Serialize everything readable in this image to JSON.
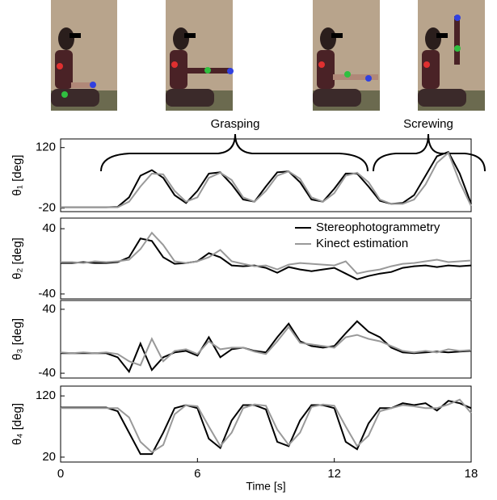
{
  "annotations": [
    "Grasping",
    "Screwing"
  ],
  "chart_data": [
    {
      "type": "line",
      "ylabel": "θ₁ [deg]",
      "xlim": [
        0,
        18
      ],
      "ylim": [
        -28,
        140
      ],
      "yticks": [
        -20,
        120
      ],
      "x": [
        0,
        0.5,
        1,
        1.5,
        2,
        2.5,
        3,
        3.5,
        4,
        4.5,
        5,
        5.5,
        6,
        6.5,
        7,
        7.5,
        8,
        8.5,
        9,
        9.5,
        10,
        10.5,
        11,
        11.5,
        12,
        12.5,
        13,
        13.5,
        14,
        14.5,
        15,
        15.5,
        16,
        16.5,
        17,
        17.5,
        18
      ],
      "series": [
        {
          "color": "#000000",
          "values": [
            -18,
            -18,
            -18,
            -18,
            -18,
            -17,
            5,
            55,
            68,
            50,
            10,
            -8,
            20,
            60,
            63,
            35,
            0,
            -5,
            30,
            63,
            65,
            40,
            0,
            -5,
            25,
            60,
            60,
            30,
            -3,
            -10,
            -8,
            10,
            55,
            100,
            110,
            60,
            -10
          ]
        },
        {
          "color": "#999999",
          "values": [
            -18,
            -18,
            -18,
            -18,
            -18,
            -18,
            -5,
            30,
            60,
            58,
            20,
            -5,
            5,
            50,
            62,
            45,
            5,
            -5,
            20,
            55,
            65,
            48,
            5,
            -5,
            15,
            55,
            62,
            40,
            0,
            -10,
            -10,
            0,
            35,
            85,
            108,
            40,
            -15
          ]
        }
      ]
    },
    {
      "type": "line",
      "ylabel": "θ₂ [deg]",
      "xlim": [
        0,
        18
      ],
      "ylim": [
        -46,
        53
      ],
      "yticks": [
        -40,
        40
      ],
      "legend": "upper right",
      "x": [
        0,
        0.5,
        1,
        1.5,
        2,
        2.5,
        3,
        3.5,
        4,
        4.5,
        5,
        5.5,
        6,
        6.5,
        7,
        7.5,
        8,
        8.5,
        9,
        9.5,
        10,
        10.5,
        11,
        11.5,
        12,
        12.5,
        13,
        13.5,
        14,
        14.5,
        15,
        15.5,
        16,
        16.5,
        17,
        17.5,
        18
      ],
      "series": [
        {
          "name": "Stereophotogrammetry",
          "color": "#000000",
          "values": [
            -2,
            -2,
            -1,
            -2,
            -2,
            -1,
            5,
            28,
            25,
            5,
            -3,
            -2,
            0,
            10,
            5,
            -5,
            -6,
            -5,
            -8,
            -14,
            -7,
            -10,
            -12,
            -10,
            -8,
            -15,
            -22,
            -18,
            -15,
            -13,
            -8,
            -6,
            -5,
            -7,
            -5,
            -6,
            -5
          ]
        },
        {
          "name": "Kinect estimation",
          "color": "#999999",
          "values": [
            -1,
            -1,
            -2,
            0,
            -1,
            0,
            2,
            15,
            35,
            20,
            0,
            -2,
            0,
            5,
            14,
            0,
            -3,
            -6,
            -5,
            -10,
            -4,
            -2,
            -3,
            -4,
            -5,
            0,
            -15,
            -12,
            -10,
            -6,
            -3,
            -2,
            0,
            2,
            -1,
            0,
            1
          ]
        }
      ]
    },
    {
      "type": "line",
      "ylabel": "θ₃ [deg]",
      "xlim": [
        0,
        18
      ],
      "ylim": [
        -46,
        51
      ],
      "yticks": [
        -40,
        40
      ],
      "x": [
        0,
        0.5,
        1,
        1.5,
        2,
        2.5,
        3,
        3.5,
        4,
        4.5,
        5,
        5.5,
        6,
        6.5,
        7,
        7.5,
        8,
        8.5,
        9,
        9.5,
        10,
        10.5,
        11,
        11.5,
        12,
        12.5,
        13,
        13.5,
        14,
        14.5,
        15,
        15.5,
        16,
        16.5,
        17,
        17.5,
        18
      ],
      "series": [
        {
          "color": "#000000",
          "values": [
            -15,
            -15,
            -15,
            -15,
            -15,
            -20,
            -38,
            -3,
            -36,
            -20,
            -14,
            -12,
            -18,
            5,
            -20,
            -10,
            -8,
            -12,
            -14,
            5,
            22,
            0,
            -6,
            -8,
            -6,
            10,
            25,
            12,
            5,
            -8,
            -14,
            -15,
            -14,
            -13,
            -14,
            -13,
            -12
          ]
        },
        {
          "color": "#999999",
          "values": [
            -14,
            -15,
            -14,
            -15,
            -14,
            -16,
            -25,
            -30,
            3,
            -25,
            -12,
            -10,
            -16,
            0,
            -10,
            -8,
            -8,
            -13,
            -16,
            0,
            18,
            -2,
            -4,
            -6,
            -8,
            5,
            8,
            3,
            0,
            -6,
            -12,
            -14,
            -12,
            -14,
            -10,
            -12,
            -11
          ]
        }
      ]
    },
    {
      "type": "line",
      "ylabel": "θ₄ [deg]",
      "xlabel": "Time [s]",
      "xlim": [
        0,
        18
      ],
      "xticks": [
        0,
        6,
        12,
        18
      ],
      "ylim": [
        12,
        136
      ],
      "yticks": [
        20,
        120
      ],
      "x": [
        0,
        0.5,
        1,
        1.5,
        2,
        2.5,
        3,
        3.5,
        4,
        4.5,
        5,
        5.5,
        6,
        6.5,
        7,
        7.5,
        8,
        8.5,
        9,
        9.5,
        10,
        10.5,
        11,
        11.5,
        12,
        12.5,
        13,
        13.5,
        14,
        14.5,
        15,
        15.5,
        16,
        16.5,
        17,
        17.5,
        18
      ],
      "series": [
        {
          "color": "#000000",
          "values": [
            101,
            101,
            101,
            101,
            101,
            95,
            60,
            25,
            25,
            60,
            100,
            105,
            100,
            50,
            35,
            80,
            105,
            105,
            98,
            45,
            38,
            80,
            105,
            105,
            100,
            45,
            33,
            75,
            100,
            100,
            108,
            105,
            108,
            96,
            112,
            108,
            100
          ]
        },
        {
          "color": "#999999",
          "values": [
            100,
            100,
            100,
            100,
            100,
            100,
            85,
            45,
            28,
            40,
            90,
            105,
            103,
            70,
            38,
            60,
            100,
            106,
            104,
            65,
            40,
            60,
            102,
            106,
            104,
            70,
            38,
            55,
            95,
            100,
            105,
            103,
            100,
            100,
            106,
            114,
            92
          ]
        }
      ]
    }
  ]
}
